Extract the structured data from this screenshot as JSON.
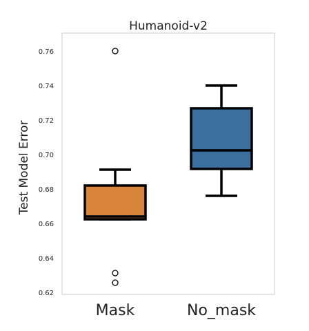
{
  "chart_data": {
    "type": "box",
    "title": "Humanoid-v2",
    "y_label": "Test Model Error",
    "categories": [
      "Mask",
      "No_mask"
    ],
    "colors": [
      "#d9843b",
      "#3a6f9e"
    ],
    "boxes": [
      {
        "whislo": 0.6628,
        "q1": 0.6628,
        "med": 0.6644,
        "q3": 0.6824,
        "whishi": 0.6916,
        "fliers": [
          0.7604,
          0.6316,
          0.626
        ]
      },
      {
        "whislo": 0.6764,
        "q1": 0.692,
        "med": 0.7028,
        "q3": 0.7272,
        "whishi": 0.7404,
        "fliers": []
      }
    ],
    "ylim": [
      0.6192,
      0.7708
    ],
    "yticks": [
      0.62,
      0.64,
      0.66,
      0.68,
      {
        "value": 0.7,
        "label": "0.70"
      },
      0.72,
      0.74,
      0.76
    ],
    "grid": false
  }
}
